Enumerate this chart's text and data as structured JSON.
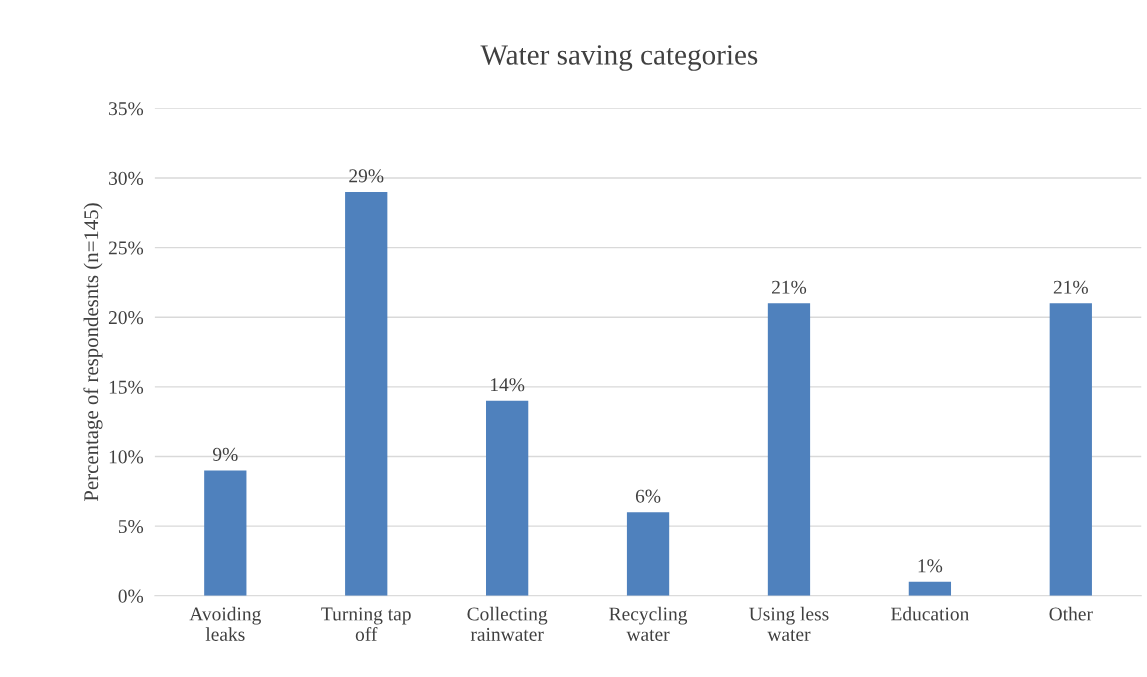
{
  "chart_data": {
    "type": "bar",
    "title": "Water saving categories",
    "ylabel": "Percentage of respondesnts (n=145)",
    "categories": [
      "Avoiding\nleaks",
      "Turning tap\noff",
      "Collecting\nrainwater",
      "Recycling\nwater",
      "Using less\nwater",
      "Education",
      "Other"
    ],
    "values": [
      9,
      29,
      14,
      6,
      21,
      1,
      21
    ],
    "value_labels": [
      "9%",
      "29%",
      "14%",
      "6%",
      "21%",
      "1%",
      "21%"
    ],
    "color": "#4f81bd",
    "ylim": [
      0,
      35
    ],
    "yticks": [
      {
        "value": 0,
        "label": "0%"
      },
      {
        "value": 5,
        "label": "5%"
      },
      {
        "value": 10,
        "label": "10%"
      },
      {
        "value": 15,
        "label": "15%"
      },
      {
        "value": 20,
        "label": "20%"
      },
      {
        "value": 25,
        "label": "25%"
      },
      {
        "value": 30,
        "label": "30%"
      },
      {
        "value": 35,
        "label": "35%"
      }
    ],
    "grid": "y",
    "legend": false
  }
}
